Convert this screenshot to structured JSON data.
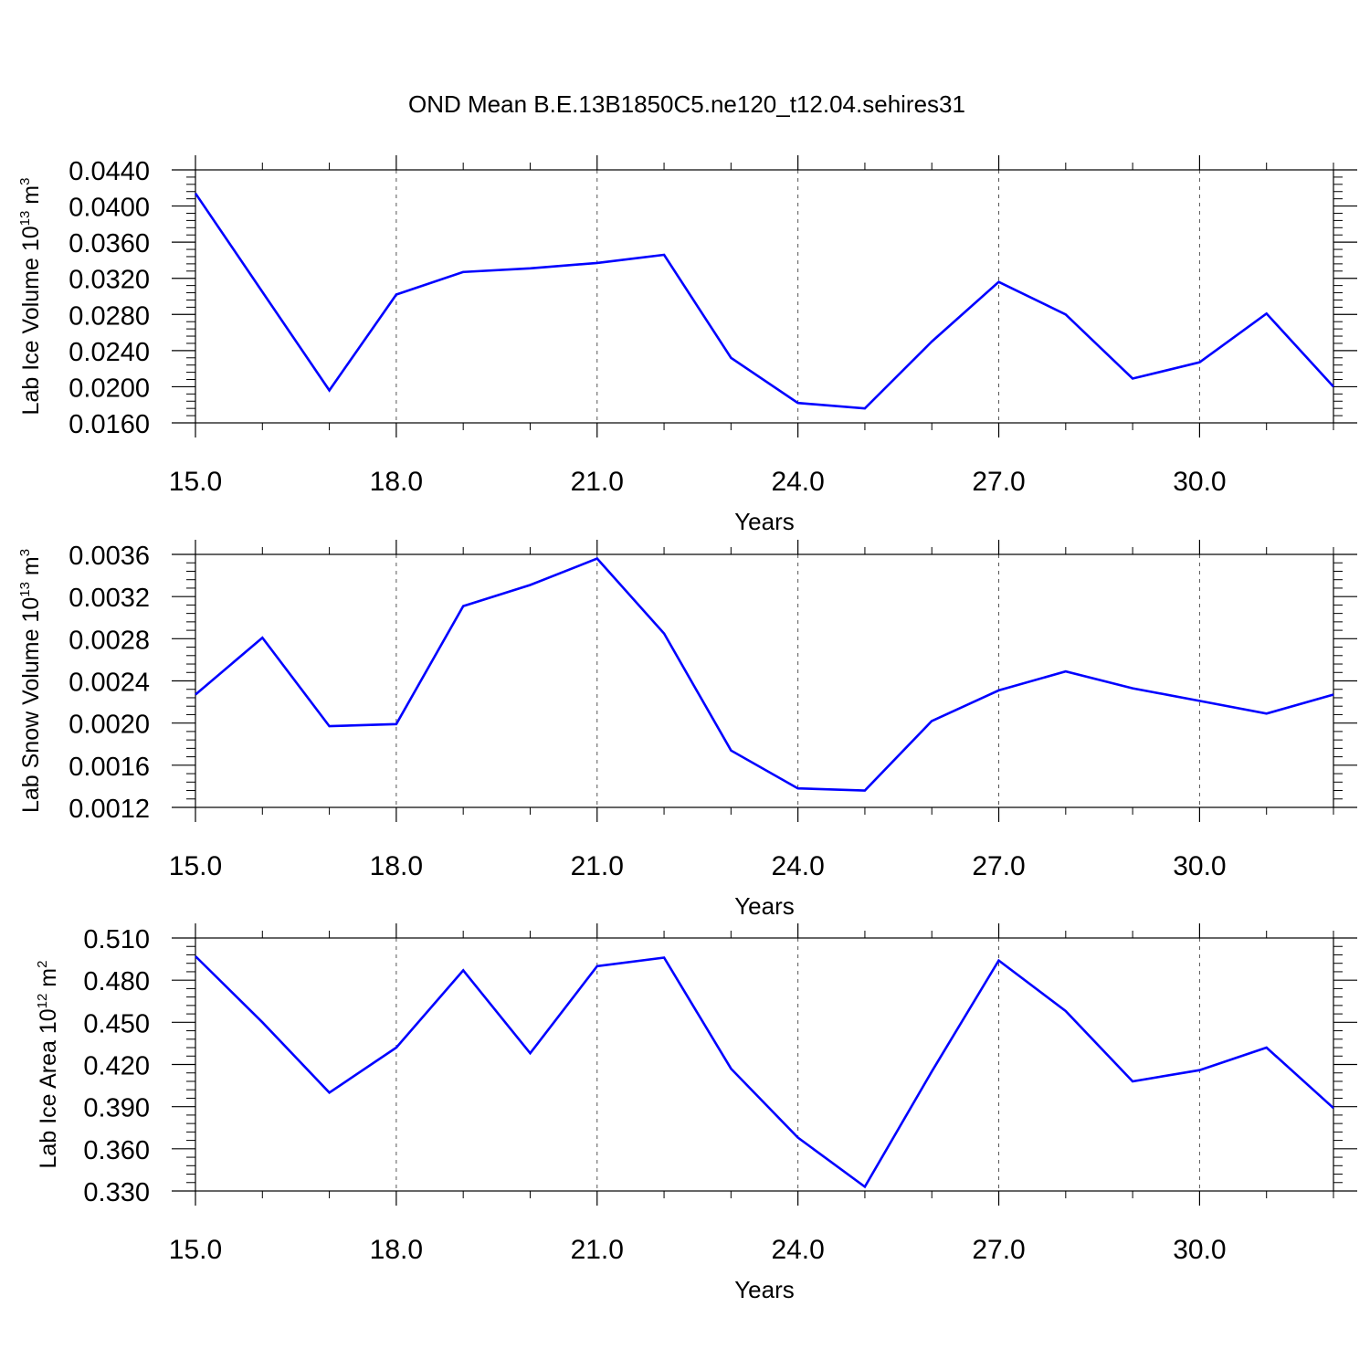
{
  "title": "OND Mean B.E.13B1850C5.ne120_t12.04.sehires31",
  "colors": {
    "line": "#0000ff",
    "axis": "#000000",
    "grid": "#555555"
  },
  "chart_data": [
    {
      "type": "line",
      "title": "OND Mean B.E.13B1850C5.ne120_t12.04.sehires31",
      "xlabel": "Years",
      "ylabel": {
        "base": "Lab Ice Volume 10",
        "exp": "13",
        "unit": " m",
        "unit_exp": "3"
      },
      "xlim": [
        15,
        32
      ],
      "ylim": [
        0.016,
        0.044
      ],
      "xticks": [
        "15.0",
        "18.0",
        "21.0",
        "24.0",
        "27.0",
        "30.0"
      ],
      "yticks": [
        "0.0160",
        "0.0200",
        "0.0240",
        "0.0280",
        "0.0320",
        "0.0360",
        "0.0400",
        "0.0440"
      ],
      "grid": "vertical dashed at major x ticks",
      "x": [
        15,
        16,
        17,
        18,
        19,
        20,
        21,
        22,
        23,
        24,
        25,
        26,
        27,
        28,
        29,
        30,
        31,
        32
      ],
      "series": [
        {
          "values": [
            0.0414,
            0.0305,
            0.0196,
            0.0302,
            0.0327,
            0.0331,
            0.0337,
            0.0346,
            0.0232,
            0.0182,
            0.0176,
            0.025,
            0.0316,
            0.028,
            0.0209,
            0.0227,
            0.0281,
            0.02
          ]
        }
      ]
    },
    {
      "type": "line",
      "xlabel": "Years",
      "ylabel": {
        "base": "Lab Snow Volume 10",
        "exp": "13",
        "unit": " m",
        "unit_exp": "3"
      },
      "xlim": [
        15,
        32
      ],
      "ylim": [
        0.0012,
        0.0036
      ],
      "xticks": [
        "15.0",
        "18.0",
        "21.0",
        "24.0",
        "27.0",
        "30.0"
      ],
      "yticks": [
        "0.0012",
        "0.0016",
        "0.0020",
        "0.0024",
        "0.0028",
        "0.0032",
        "0.0036"
      ],
      "grid": "vertical dashed at major x ticks",
      "x": [
        15,
        16,
        17,
        18,
        19,
        20,
        21,
        22,
        23,
        24,
        25,
        26,
        27,
        28,
        29,
        30,
        31,
        32
      ],
      "series": [
        {
          "values": [
            0.00227,
            0.00281,
            0.00197,
            0.00199,
            0.00311,
            0.00331,
            0.00356,
            0.00285,
            0.00174,
            0.00138,
            0.00136,
            0.00202,
            0.00231,
            0.00249,
            0.00233,
            0.00221,
            0.00209,
            0.00227
          ]
        }
      ]
    },
    {
      "type": "line",
      "xlabel": "Years",
      "ylabel": {
        "base": "Lab Ice Area 10",
        "exp": "12",
        "unit": " m",
        "unit_exp": "2"
      },
      "xlim": [
        15,
        32
      ],
      "ylim": [
        0.33,
        0.51
      ],
      "xticks": [
        "15.0",
        "18.0",
        "21.0",
        "24.0",
        "27.0",
        "30.0"
      ],
      "yticks": [
        "0.330",
        "0.360",
        "0.390",
        "0.420",
        "0.450",
        "0.480",
        "0.510"
      ],
      "grid": "vertical dashed at major x ticks",
      "x": [
        15,
        16,
        17,
        18,
        19,
        20,
        21,
        22,
        23,
        24,
        25,
        26,
        27,
        28,
        29,
        30,
        31,
        32
      ],
      "series": [
        {
          "values": [
            0.497,
            0.45,
            0.4,
            0.432,
            0.487,
            0.428,
            0.49,
            0.496,
            0.417,
            0.368,
            0.333,
            0.415,
            0.494,
            0.458,
            0.408,
            0.416,
            0.432,
            0.389
          ]
        }
      ]
    }
  ]
}
